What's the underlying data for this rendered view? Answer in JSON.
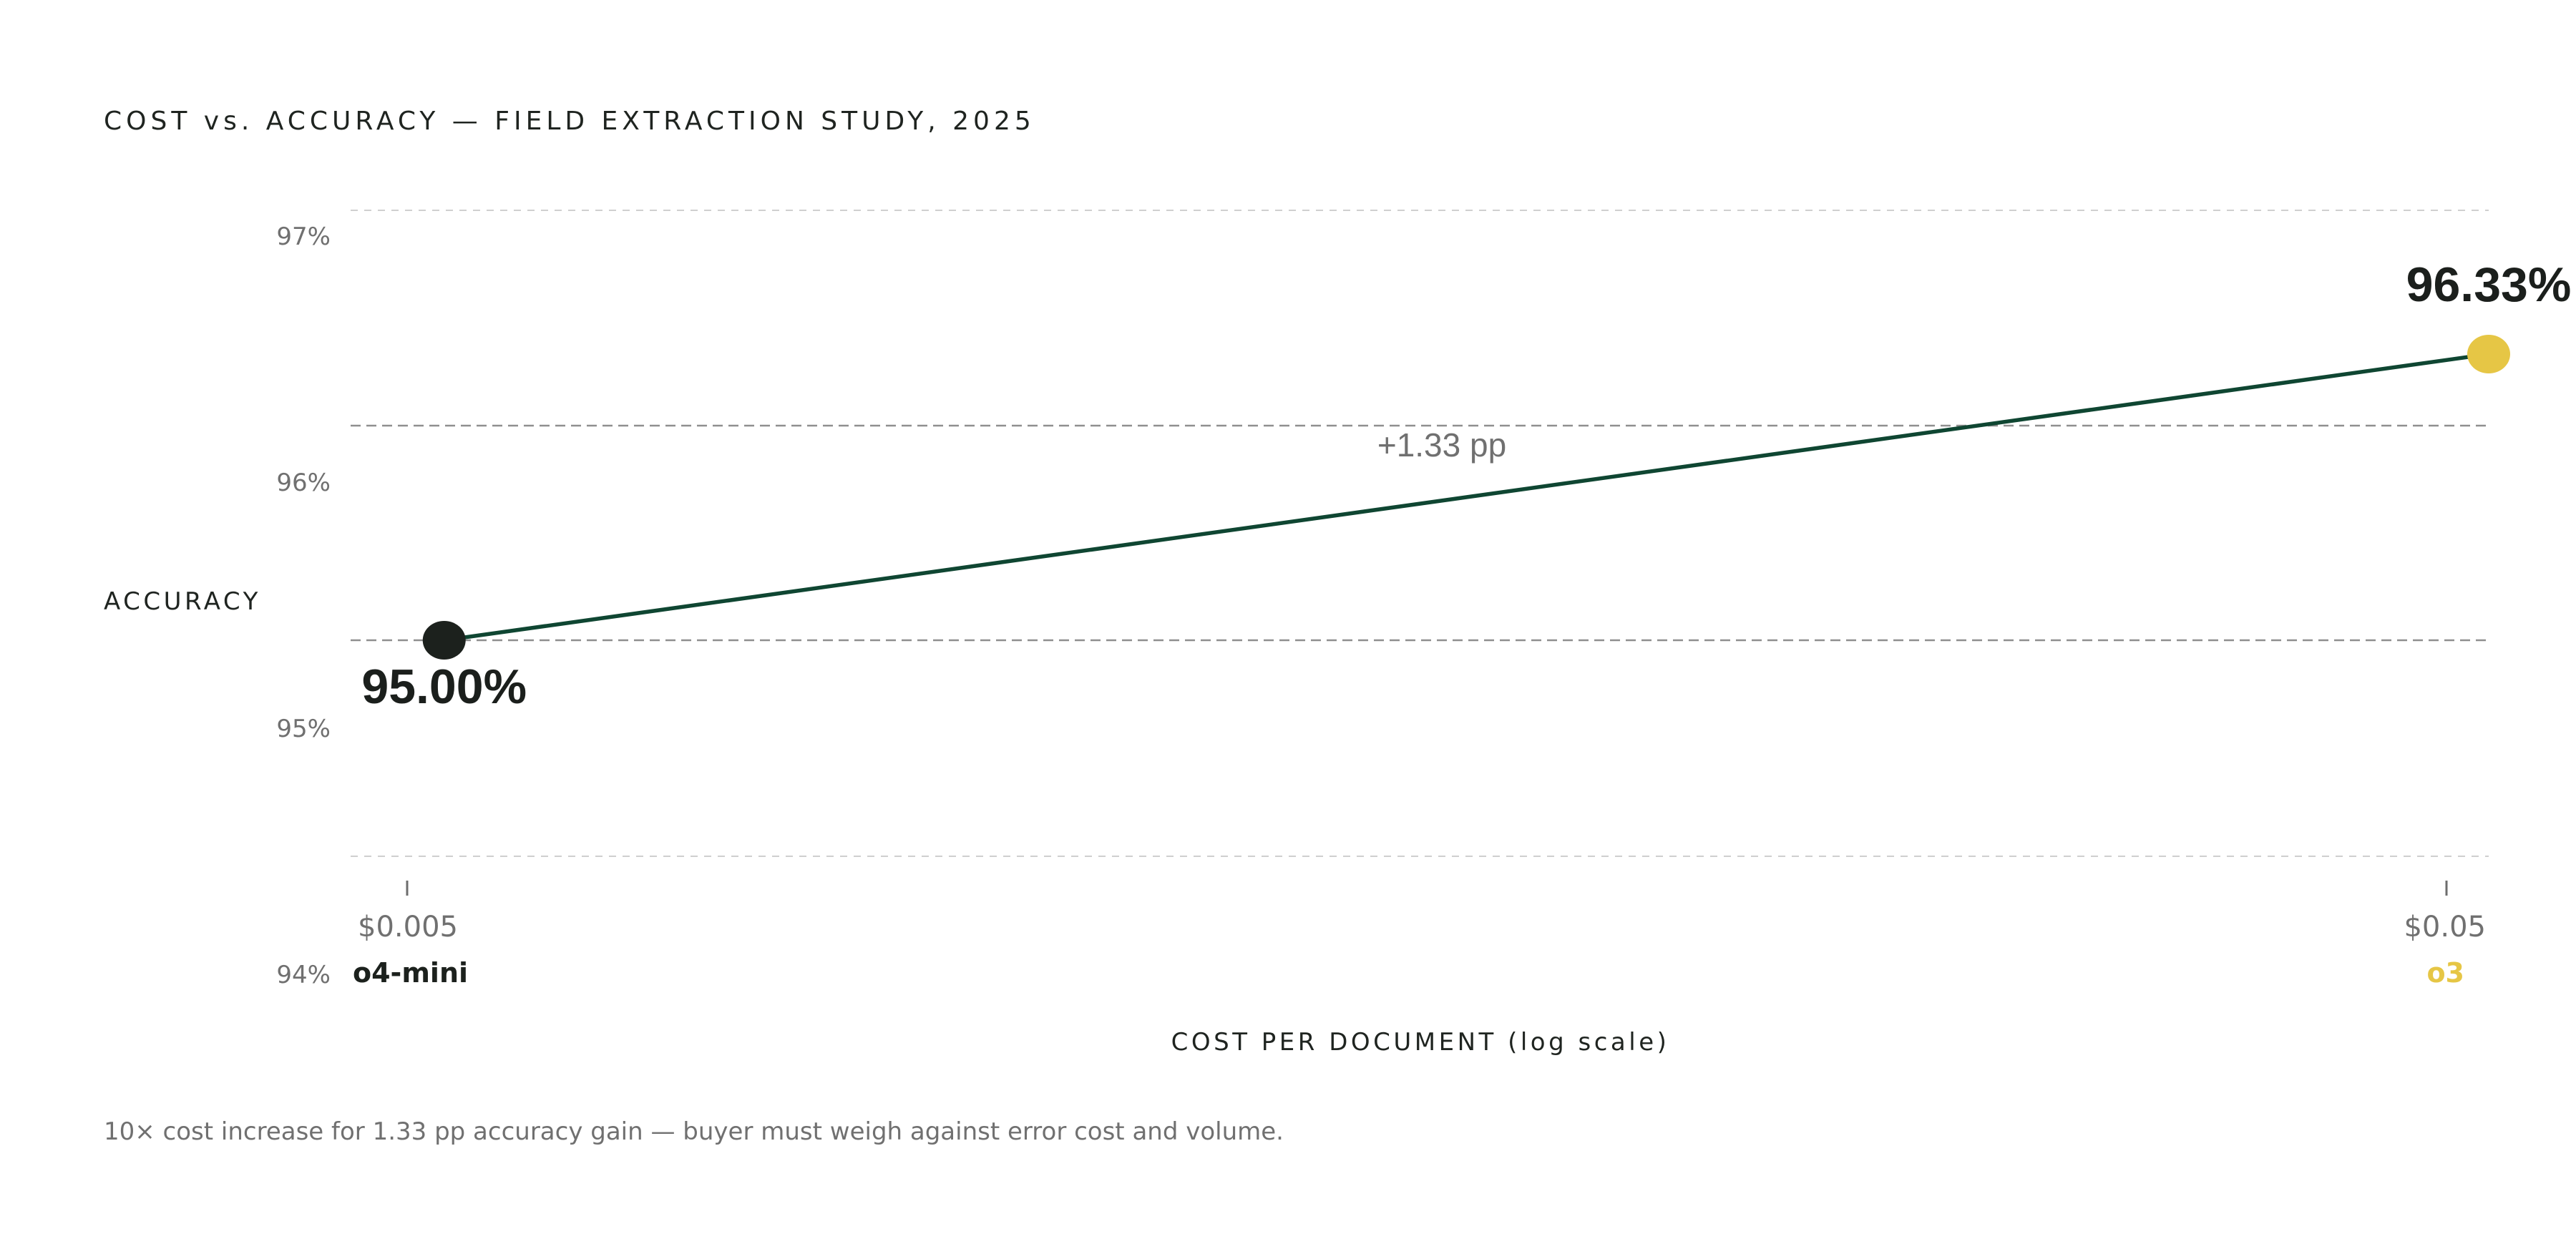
{
  "chart_data": {
    "type": "line",
    "title": "COST vs. ACCURACY — FIELD EXTRACTION STUDY, 2025",
    "xlabel": "COST PER DOCUMENT (log scale)",
    "ylabel": "ACCURACY",
    "x_scale": "log",
    "y_ticks": [
      "97%",
      "96%",
      "95%",
      "94%"
    ],
    "x_ticks": [
      "$0.005",
      "$0.05"
    ],
    "grid": true,
    "points": [
      {
        "name": "o4-mini",
        "x": 0.005,
        "y": 95.0,
        "label": "95.00%",
        "color": "#1c211d"
      },
      {
        "name": "o3",
        "x": 0.05,
        "y": 96.33,
        "label": "96.33%",
        "color": "#e6c645"
      }
    ],
    "line_color": "#0f4632",
    "annotation": "+1.33 pp",
    "footnote": "10× cost increase for 1.33 pp accuracy gain — buyer must weigh against error cost and volume."
  }
}
